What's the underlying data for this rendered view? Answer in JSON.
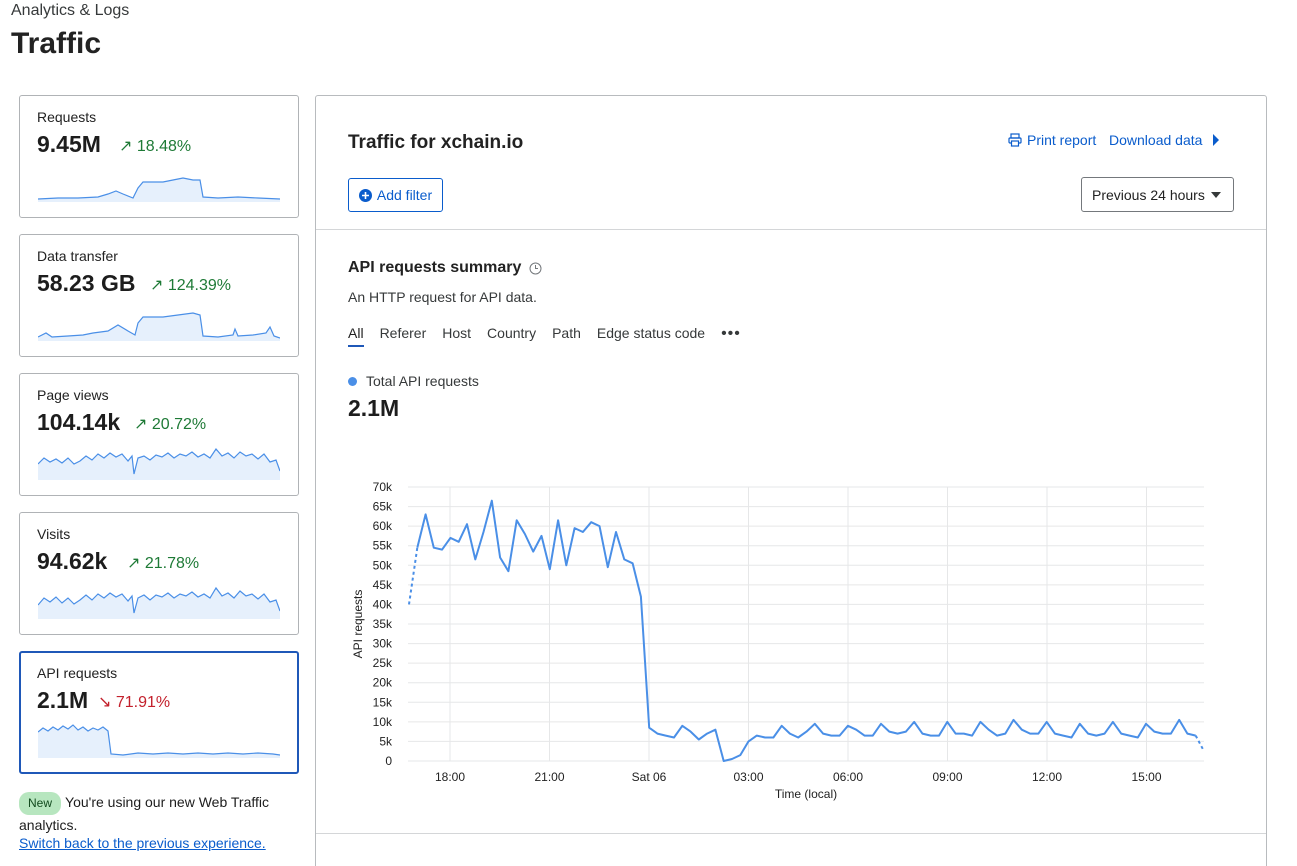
{
  "header": {
    "breadcrumb": "Analytics & Logs",
    "title": "Traffic"
  },
  "metrics": [
    {
      "label": "Requests",
      "value": "9.45M",
      "change": "18.48%",
      "direction": "up",
      "arrow": "↗"
    },
    {
      "label": "Data transfer",
      "value": "58.23 GB",
      "change": "124.39%",
      "direction": "up",
      "arrow": "↗"
    },
    {
      "label": "Page views",
      "value": "104.14k",
      "change": "20.72%",
      "direction": "up",
      "arrow": "↗"
    },
    {
      "label": "Visits",
      "value": "94.62k",
      "change": "21.78%",
      "direction": "up",
      "arrow": "↗"
    },
    {
      "label": "API requests",
      "value": "2.1M",
      "change": "71.91%",
      "direction": "down",
      "arrow": "↘",
      "selected": true
    }
  ],
  "notice": {
    "badge": "New",
    "text": "You're using our new Web Traffic analytics.",
    "link": "Switch back to the previous experience."
  },
  "panel": {
    "title": "Traffic for xchain.io",
    "print_label": "Print report",
    "download_label": "Download data",
    "add_filter_label": "Add filter",
    "time_range": "Previous 24 hours"
  },
  "summary": {
    "title": "API requests summary",
    "description": "An HTTP request for API data.",
    "tabs": [
      "All",
      "Referer",
      "Host",
      "Country",
      "Path",
      "Edge status code"
    ],
    "active_tab": "All",
    "legend_label": "Total API requests",
    "total": "2.1M"
  },
  "colors": {
    "accent": "#0a5ccc",
    "line": "#4a8fe7",
    "up": "#1e7a36",
    "down": "#c3202c"
  },
  "chart_data": {
    "type": "line",
    "ylabel": "API requests",
    "xlabel": "Time (local)",
    "ylim": [
      0,
      70000
    ],
    "yticks": [
      "0",
      "5k",
      "10k",
      "15k",
      "20k",
      "25k",
      "30k",
      "35k",
      "40k",
      "45k",
      "50k",
      "55k",
      "60k",
      "65k",
      "70k"
    ],
    "xticks": [
      "18:00",
      "21:00",
      "Sat 06",
      "03:00",
      "06:00",
      "09:00",
      "12:00",
      "15:00"
    ],
    "series": [
      {
        "name": "Total API requests",
        "values": [
          40000,
          54500,
          63000,
          54500,
          54000,
          57000,
          56000,
          60500,
          51500,
          58500,
          66500,
          52000,
          48500,
          61500,
          58000,
          53500,
          57500,
          49000,
          61500,
          50000,
          59500,
          58500,
          61000,
          60000,
          49500,
          58500,
          51500,
          50500,
          42000,
          8500,
          7000,
          6500,
          6000,
          9000,
          7500,
          5500,
          7000,
          8000,
          0,
          500,
          1500,
          5000,
          6500,
          6000,
          6000,
          9000,
          7000,
          6000,
          7500,
          9500,
          7000,
          6500,
          6500,
          9000,
          8000,
          6500,
          6500,
          9500,
          7500,
          7000,
          7500,
          10000,
          7000,
          6500,
          6500,
          10000,
          7000,
          7000,
          6500,
          10000,
          8000,
          6500,
          7000,
          10500,
          8000,
          7000,
          7000,
          10000,
          7000,
          6500,
          6000,
          9500,
          7000,
          6500,
          7000,
          10000,
          7000,
          6500,
          6000,
          9500,
          7500,
          7000,
          7000,
          10500,
          7000,
          6500,
          2500
        ]
      }
    ]
  }
}
